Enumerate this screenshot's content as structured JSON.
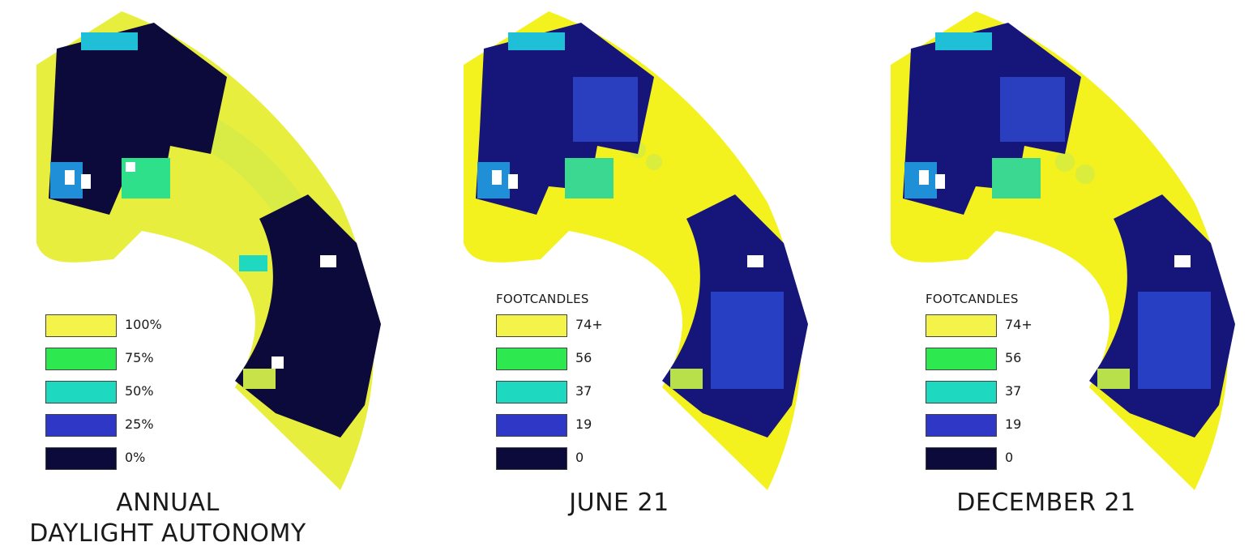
{
  "colors": {
    "c100": "#f4f34a",
    "c75": "#2ee84f",
    "c50": "#1fd8c0",
    "c25": "#2f38c6",
    "c0": "#0b0a3a"
  },
  "panels": [
    {
      "title_line1": "ANNUAL",
      "title_line2": "DAYLIGHT AUTONOMY",
      "legend_title": "",
      "legend": [
        {
          "label": "100%",
          "color": "#f4f34a"
        },
        {
          "label": "75%",
          "color": "#2ee84f"
        },
        {
          "label": "50%",
          "color": "#1fd8c0"
        },
        {
          "label": "25%",
          "color": "#2f38c6"
        },
        {
          "label": "0%",
          "color": "#0b0a3a"
        }
      ]
    },
    {
      "title_line1": "JUNE 21",
      "title_line2": "",
      "legend_title": "FOOTCANDLES",
      "legend": [
        {
          "label": "74+",
          "color": "#f4f34a"
        },
        {
          "label": "56",
          "color": "#2ee84f"
        },
        {
          "label": "37",
          "color": "#1fd8c0"
        },
        {
          "label": "19",
          "color": "#2f38c6"
        },
        {
          "label": "0",
          "color": "#0b0a3a"
        }
      ]
    },
    {
      "title_line1": "DECEMBER 21",
      "title_line2": "",
      "legend_title": "FOOTCANDLES",
      "legend": [
        {
          "label": "74+",
          "color": "#f4f34a"
        },
        {
          "label": "56",
          "color": "#2ee84f"
        },
        {
          "label": "37",
          "color": "#1fd8c0"
        },
        {
          "label": "19",
          "color": "#2f38c6"
        },
        {
          "label": "0",
          "color": "#0b0a3a"
        }
      ]
    }
  ]
}
